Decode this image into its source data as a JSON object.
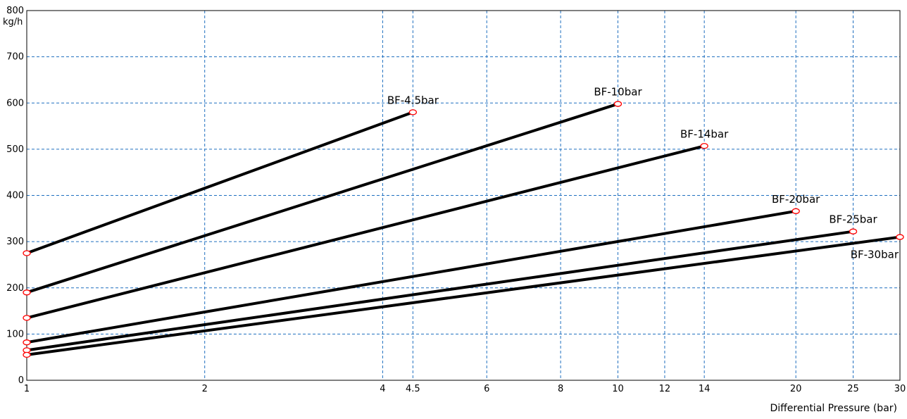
{
  "chart_data": {
    "type": "line",
    "title": "",
    "xlabel": "Differential Pressure (bar)",
    "ylabel": "",
    "yunit": "kg/h",
    "xscale": "log",
    "xlim": [
      1,
      30
    ],
    "ylim": [
      0,
      800
    ],
    "grid": true,
    "xticks": [
      1,
      2,
      4,
      4.5,
      6,
      8,
      10,
      12,
      14,
      20,
      25,
      30
    ],
    "yticks": [
      0,
      100,
      200,
      300,
      400,
      500,
      600,
      700,
      800
    ],
    "series": [
      {
        "name": "BF-4.5bar",
        "x": [
          1,
          4.5
        ],
        "y": [
          275,
          580
        ]
      },
      {
        "name": "BF-10bar",
        "x": [
          1,
          10
        ],
        "y": [
          190,
          598
        ]
      },
      {
        "name": "BF-14bar",
        "x": [
          1,
          14
        ],
        "y": [
          135,
          507
        ]
      },
      {
        "name": "BF-20bar",
        "x": [
          1,
          20
        ],
        "y": [
          82,
          366
        ]
      },
      {
        "name": "BF-25bar",
        "x": [
          1,
          25
        ],
        "y": [
          65,
          322
        ]
      },
      {
        "name": "BF-30bar",
        "x": [
          1,
          30
        ],
        "y": [
          55,
          310
        ]
      }
    ],
    "colors": {
      "line": "#000000",
      "marker": "#ff0000",
      "grid": "#1f6fbf"
    }
  }
}
